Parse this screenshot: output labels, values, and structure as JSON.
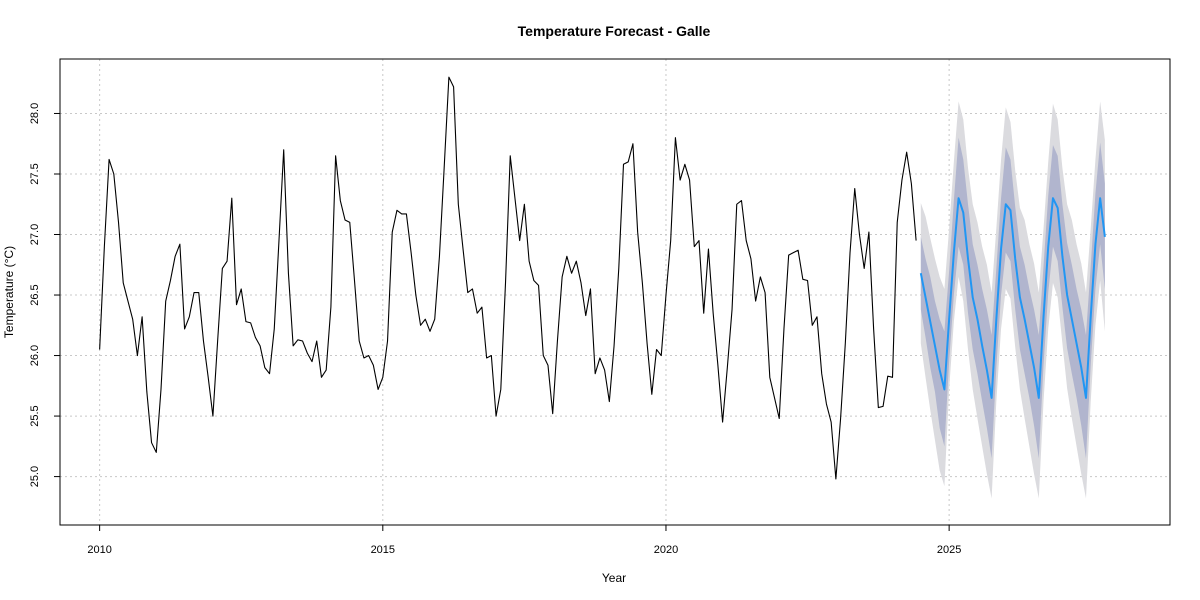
{
  "chart_data": {
    "type": "line",
    "title": "Temperature Forecast - Galle",
    "xlabel": "Year",
    "ylabel": "Temperature (°C)",
    "xlim": [
      2009.3,
      2028.9
    ],
    "ylim": [
      24.6,
      28.45
    ],
    "grid": true,
    "x_ticks": [
      2010,
      2015,
      2020,
      2025
    ],
    "y_ticks": [
      25.0,
      25.5,
      26.0,
      26.5,
      27.0,
      27.5,
      28.0
    ],
    "colors": {
      "history": "#000000",
      "forecast": "#2196f3",
      "band80": "#b1b5ce",
      "band95": "#dbdbdf",
      "grid": "#c8c8c8"
    },
    "history": {
      "start": 2010.0,
      "step": 0.0833333,
      "values": [
        26.05,
        26.9,
        27.62,
        27.5,
        27.1,
        26.6,
        26.45,
        26.3,
        26.0,
        26.32,
        25.7,
        25.28,
        25.2,
        25.72,
        26.45,
        26.62,
        26.82,
        26.92,
        26.22,
        26.32,
        26.52,
        26.52,
        26.12,
        25.82,
        25.5,
        26.12,
        26.72,
        26.78,
        27.3,
        26.42,
        26.55,
        26.28,
        26.27,
        26.15,
        26.08,
        25.9,
        25.85,
        26.22,
        26.95,
        27.7,
        26.68,
        26.08,
        26.13,
        26.12,
        26.02,
        25.95,
        26.12,
        25.82,
        25.88,
        26.4,
        27.65,
        27.28,
        27.12,
        27.1,
        26.62,
        26.12,
        25.98,
        26.0,
        25.92,
        25.72,
        25.82,
        26.12,
        27.02,
        27.2,
        27.17,
        27.17,
        26.85,
        26.5,
        26.25,
        26.3,
        26.2,
        26.3,
        26.82,
        27.55,
        28.3,
        28.22,
        27.25,
        26.88,
        26.52,
        26.55,
        26.35,
        26.4,
        25.98,
        26.0,
        25.5,
        25.72,
        26.6,
        27.65,
        27.3,
        26.95,
        27.25,
        26.78,
        26.62,
        26.58,
        26.0,
        25.92,
        25.52,
        26.12,
        26.65,
        26.82,
        26.68,
        26.78,
        26.6,
        26.33,
        26.55,
        25.85,
        25.98,
        25.88,
        25.62,
        26.08,
        26.72,
        27.58,
        27.6,
        27.75,
        27.02,
        26.6,
        26.1,
        25.68,
        26.05,
        26.0,
        26.5,
        26.95,
        27.8,
        27.45,
        27.58,
        27.45,
        26.9,
        26.95,
        26.35,
        26.88,
        26.35,
        25.92,
        25.45,
        25.9,
        26.38,
        27.25,
        27.28,
        26.95,
        26.8,
        26.45,
        26.65,
        26.52,
        25.82,
        25.65,
        25.48,
        26.22,
        26.83,
        26.85,
        26.87,
        26.63,
        26.62,
        26.25,
        26.32,
        25.85,
        25.6,
        25.45,
        24.98,
        25.48,
        26.1,
        26.85,
        27.38,
        27.0,
        26.72,
        27.02,
        26.22,
        25.57,
        25.58,
        25.83,
        25.82,
        27.1,
        27.45,
        27.68,
        27.42,
        26.95
      ]
    },
    "forecast": {
      "start": 2024.5,
      "step": 0.0833333,
      "mean": [
        26.68,
        26.48,
        26.28,
        26.08,
        25.88,
        25.72,
        26.3,
        26.85,
        27.3,
        27.18,
        26.8,
        26.48,
        26.3,
        26.08,
        25.88,
        25.65,
        26.3,
        26.88,
        27.25,
        27.2,
        26.8,
        26.48,
        26.3,
        26.1,
        25.9,
        25.65,
        26.32,
        26.9,
        27.3,
        27.22,
        26.82,
        26.5,
        26.3,
        26.1,
        25.9,
        25.65,
        26.32,
        26.92,
        27.3,
        26.98
      ],
      "lo80": [
        26.38,
        26.15,
        25.9,
        25.7,
        25.4,
        25.25,
        25.95,
        26.5,
        26.9,
        26.75,
        26.35,
        26.05,
        25.85,
        25.62,
        25.4,
        25.15,
        25.9,
        26.5,
        26.85,
        26.78,
        26.38,
        26.05,
        25.85,
        25.65,
        25.42,
        25.15,
        25.92,
        26.52,
        26.9,
        26.78,
        26.4,
        26.06,
        25.85,
        25.65,
        25.42,
        25.15,
        25.92,
        26.55,
        26.92,
        26.55
      ],
      "hi80": [
        26.98,
        26.8,
        26.65,
        26.45,
        26.3,
        26.2,
        26.7,
        27.28,
        27.8,
        27.62,
        27.25,
        26.92,
        26.75,
        26.55,
        26.38,
        26.17,
        26.72,
        27.3,
        27.72,
        27.62,
        27.23,
        26.9,
        26.75,
        26.55,
        26.38,
        26.17,
        26.74,
        27.32,
        27.74,
        27.65,
        27.25,
        26.93,
        26.75,
        26.55,
        26.38,
        26.17,
        26.74,
        27.34,
        27.76,
        27.42
      ],
      "lo95": [
        26.1,
        25.82,
        25.55,
        25.3,
        25.05,
        24.92,
        25.72,
        26.28,
        26.65,
        26.45,
        26.05,
        25.72,
        25.48,
        25.25,
        25.02,
        24.82,
        25.62,
        26.22,
        26.55,
        26.47,
        26.07,
        25.72,
        25.48,
        25.25,
        25.02,
        24.82,
        25.62,
        26.22,
        26.6,
        26.48,
        26.1,
        25.73,
        25.48,
        25.25,
        25.02,
        24.82,
        25.62,
        26.25,
        26.62,
        26.2
      ],
      "hi95": [
        27.26,
        27.15,
        26.97,
        26.8,
        26.65,
        26.55,
        27.05,
        27.6,
        28.1,
        27.95,
        27.55,
        27.25,
        27.1,
        26.9,
        26.75,
        26.52,
        27.05,
        27.62,
        28.05,
        27.93,
        27.53,
        27.22,
        27.12,
        26.92,
        26.76,
        26.52,
        27.05,
        27.6,
        28.08,
        27.95,
        27.55,
        27.25,
        27.12,
        26.92,
        26.76,
        26.52,
        27.05,
        27.62,
        28.1,
        27.78
      ]
    }
  }
}
